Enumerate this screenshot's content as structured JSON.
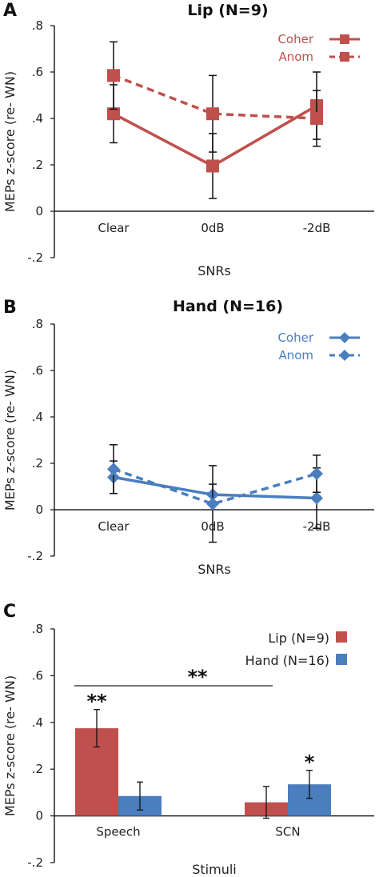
{
  "colors": {
    "lip": "#c0504d",
    "hand": "#4a7ebf"
  },
  "chart_data": [
    {
      "panel": "A",
      "type": "line",
      "title": "Lip (N=9)",
      "xlabel": "SNRs",
      "ylabel": "MEPs z-score (re- WN)",
      "categories": [
        "Clear",
        "0dB",
        "-2dB"
      ],
      "ylim": [
        -0.2,
        0.8
      ],
      "yticks": [
        -0.2,
        0,
        0.2,
        0.4,
        0.6,
        0.8
      ],
      "ytick_labels": [
        "-.2",
        "0",
        ".2",
        ".4",
        ".6",
        ".8"
      ],
      "legend_position": "top-right",
      "marker": "square",
      "color": "#c0504d",
      "series": [
        {
          "name": "Coher",
          "style": "solid",
          "values": [
            0.42,
            0.195,
            0.455
          ],
          "err": [
            0.125,
            0.14,
            0.145
          ]
        },
        {
          "name": "Anom",
          "style": "dashed",
          "values": [
            0.585,
            0.42,
            0.4
          ],
          "err": [
            0.145,
            0.165,
            0.12
          ]
        }
      ]
    },
    {
      "panel": "B",
      "type": "line",
      "title": "Hand (N=16)",
      "xlabel": "SNRs",
      "ylabel": "MEPs z-score (re- WN)",
      "categories": [
        "Clear",
        "0dB",
        "-2dB"
      ],
      "ylim": [
        -0.2,
        0.8
      ],
      "yticks": [
        -0.2,
        0,
        0.2,
        0.4,
        0.6,
        0.8
      ],
      "ytick_labels": [
        "-.2",
        "0",
        ".2",
        ".4",
        ".6",
        ".8"
      ],
      "legend_position": "top-right",
      "marker": "diamond",
      "color": "#4a7ebf",
      "series": [
        {
          "name": "Coher",
          "style": "solid",
          "values": [
            0.14,
            0.065,
            0.05
          ],
          "err": [
            0.07,
            0.045,
            0.13
          ]
        },
        {
          "name": "Anom",
          "style": "dashed",
          "values": [
            0.175,
            0.025,
            0.155
          ],
          "err": [
            0.105,
            0.165,
            0.08
          ]
        }
      ]
    },
    {
      "panel": "C",
      "type": "bar",
      "xlabel": "Stimuli",
      "ylabel": "MEPs z-score (re- WN)",
      "categories": [
        "Speech",
        "SCN"
      ],
      "ylim": [
        -0.2,
        0.8
      ],
      "yticks": [
        -0.2,
        0,
        0.2,
        0.4,
        0.6,
        0.8
      ],
      "ytick_labels": [
        "-.2",
        "0",
        ".2",
        ".4",
        ".6",
        ".8"
      ],
      "legend_position": "top-right",
      "series": [
        {
          "name": "Lip (N=9)",
          "color": "#c0504d",
          "values": [
            0.375,
            0.058
          ],
          "err": [
            0.08,
            0.068
          ],
          "stars": [
            "**",
            ""
          ]
        },
        {
          "name": "Hand (N=16)",
          "color": "#4a7ebf",
          "values": [
            0.085,
            0.135
          ],
          "err": [
            0.06,
            0.06
          ],
          "stars": [
            "",
            "*"
          ]
        }
      ],
      "comparison": {
        "label": "**",
        "between": [
          "Speech",
          "SCN"
        ],
        "series": "Lip (N=9)"
      }
    }
  ]
}
